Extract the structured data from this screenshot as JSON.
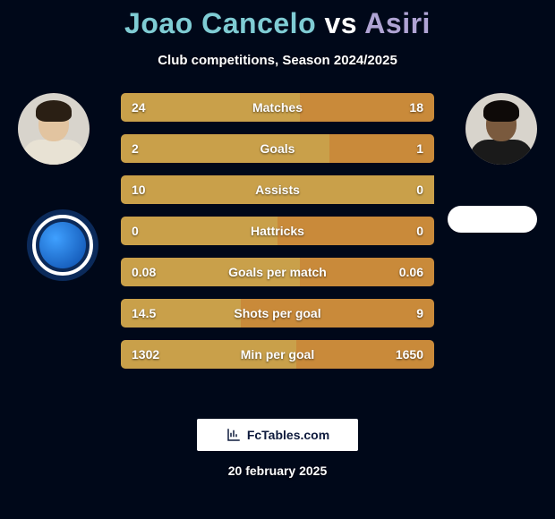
{
  "title": {
    "player1": "Joao Cancelo",
    "vs": "vs",
    "player2": "Asiri"
  },
  "subtitle": "Club competitions, Season 2024/2025",
  "date": "20 february 2025",
  "brand": "FcTables.com",
  "colors": {
    "player1": "#7fccd4",
    "player2": "#b0a4d4",
    "bar_left": "#c9a04a",
    "bar_right": "#c98a3a",
    "bar_empty": "#3a2f1a",
    "background": "#000819",
    "row_label_fontsize": 14,
    "row_val_fontsize": 14
  },
  "players": {
    "left": {
      "skin": "#e2c4a0",
      "hair": "#2a1f14",
      "jersey": "#e8e2d4"
    },
    "right": {
      "skin": "#7a5a3e",
      "hair": "#0e0a08",
      "jersey": "#1a1a1a"
    }
  },
  "rows": [
    {
      "label": "Matches",
      "left": "24",
      "right": "18",
      "lfrac": 0.571,
      "rfrac": 0.429
    },
    {
      "label": "Goals",
      "left": "2",
      "right": "1",
      "lfrac": 0.667,
      "rfrac": 0.333
    },
    {
      "label": "Assists",
      "left": "10",
      "right": "0",
      "lfrac": 1.0,
      "rfrac": 0.0
    },
    {
      "label": "Hattricks",
      "left": "0",
      "right": "0",
      "lfrac": 0.5,
      "rfrac": 0.5
    },
    {
      "label": "Goals per match",
      "left": "0.08",
      "right": "0.06",
      "lfrac": 0.571,
      "rfrac": 0.429
    },
    {
      "label": "Shots per goal",
      "left": "14.5",
      "right": "9",
      "lfrac": 0.383,
      "rfrac": 0.617
    },
    {
      "label": "Min per goal",
      "left": "1302",
      "right": "1650",
      "lfrac": 0.559,
      "rfrac": 0.441
    }
  ]
}
